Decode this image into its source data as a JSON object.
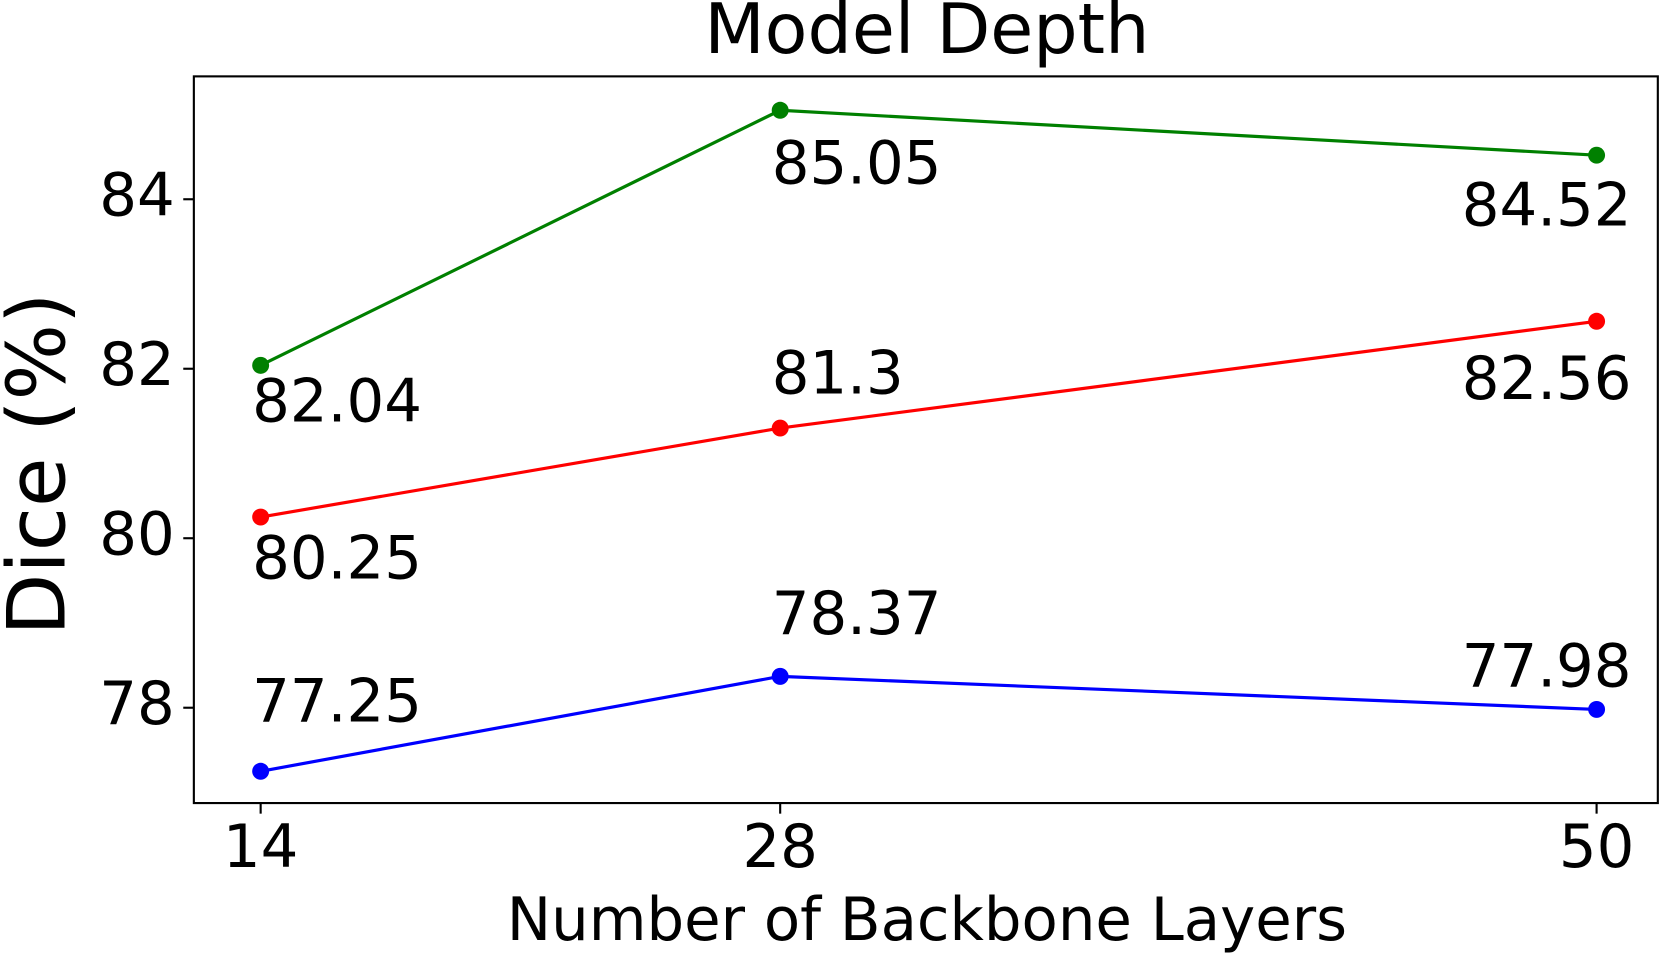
{
  "chart_data": {
    "type": "line",
    "title": "Model Depth",
    "x_label": "Number of Backbone Layers",
    "y_label": "Dice (%)",
    "x": [
      14,
      28,
      50
    ],
    "series": [
      {
        "color": "#008000",
        "values": [
          82.04,
          85.05,
          84.52
        ]
      },
      {
        "color": "#ff0000",
        "values": [
          80.25,
          81.3,
          82.56
        ]
      },
      {
        "color": "#0000ff",
        "values": [
          77.25,
          78.37,
          77.98
        ]
      }
    ],
    "xlim": [
      12.2,
      51.65
    ],
    "xticks": [
      14,
      28,
      50
    ],
    "ylim": [
      76.875,
      85.45
    ],
    "yticks": [
      78,
      80,
      82,
      84
    ],
    "grid": false
  }
}
